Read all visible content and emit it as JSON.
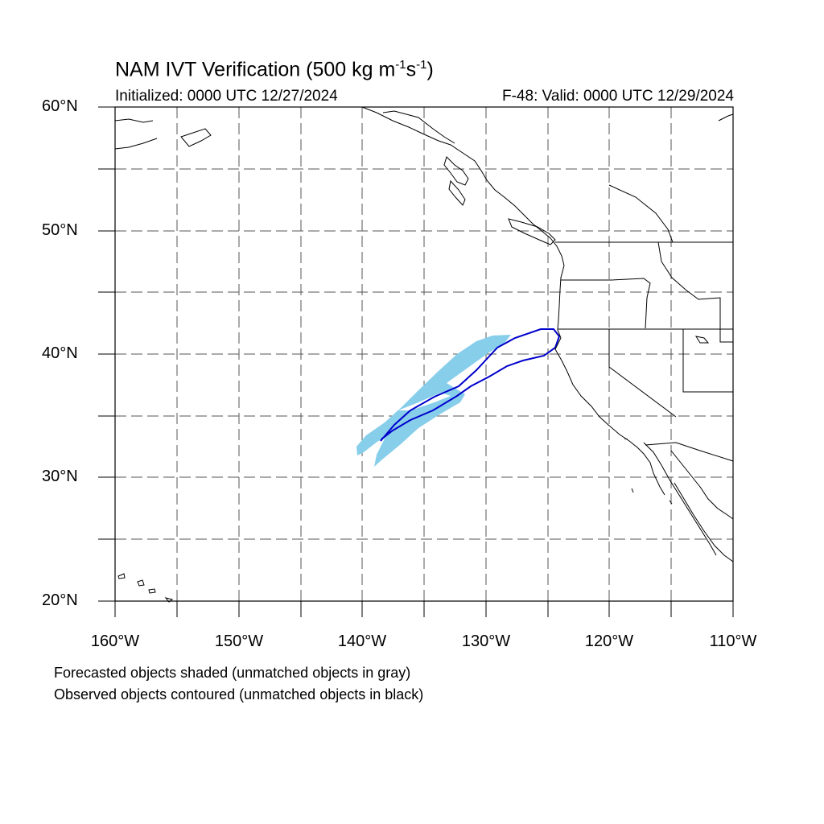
{
  "title": {
    "text": "NAM IVT Verification (500 kg m",
    "exp1": "-1",
    "mid": "s",
    "exp2": "-1",
    "end": ")"
  },
  "initialized": "Initialized: 0000 UTC 12/27/2024",
  "valid": "F-48: Valid: 0000 UTC 12/29/2024",
  "lat_labels": [
    "60°N",
    "50°N",
    "40°N",
    "30°N",
    "20°N"
  ],
  "lon_labels": [
    "160°W",
    "150°W",
    "140°W",
    "130°W",
    "120°W",
    "110°W"
  ],
  "legend": {
    "line1": "Forecasted objects shaded (unmatched objects in gray)",
    "line2": "Observed objects contoured (unmatched objects in black)"
  },
  "colors": {
    "forecast_fill": "#87ceeb",
    "observed_contour": "#0000cc",
    "coastline": "#000000",
    "grid": "#555555"
  }
}
